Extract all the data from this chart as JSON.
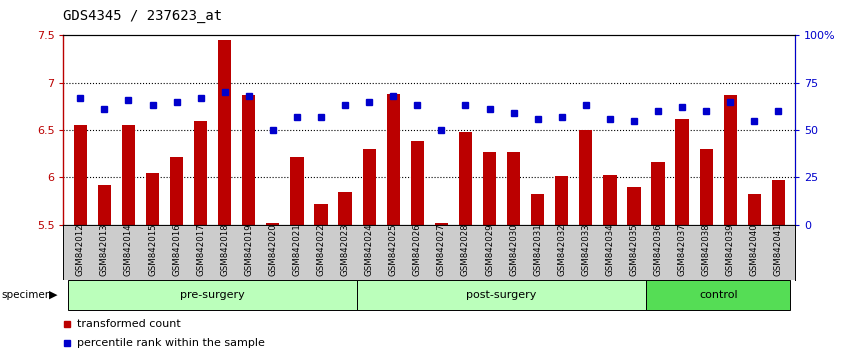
{
  "title": "GDS4345 / 237623_at",
  "samples": [
    "GSM842012",
    "GSM842013",
    "GSM842014",
    "GSM842015",
    "GSM842016",
    "GSM842017",
    "GSM842018",
    "GSM842019",
    "GSM842020",
    "GSM842021",
    "GSM842022",
    "GSM842023",
    "GSM842024",
    "GSM842025",
    "GSM842026",
    "GSM842027",
    "GSM842028",
    "GSM842029",
    "GSM842030",
    "GSM842031",
    "GSM842032",
    "GSM842033",
    "GSM842034",
    "GSM842035",
    "GSM842036",
    "GSM842037",
    "GSM842038",
    "GSM842039",
    "GSM842040",
    "GSM842041"
  ],
  "bar_values": [
    6.55,
    5.92,
    6.55,
    6.05,
    6.22,
    6.6,
    7.45,
    6.87,
    5.52,
    6.22,
    5.72,
    5.85,
    6.3,
    6.88,
    6.38,
    5.52,
    6.48,
    6.27,
    6.27,
    5.83,
    6.02,
    6.5,
    6.03,
    5.9,
    6.16,
    6.62,
    6.3,
    6.87,
    5.82,
    5.97
  ],
  "percentile_values": [
    67,
    61,
    66,
    63,
    65,
    67,
    70,
    68,
    50,
    57,
    57,
    63,
    65,
    68,
    63,
    50,
    63,
    61,
    59,
    56,
    57,
    63,
    56,
    55,
    60,
    62,
    60,
    65,
    55,
    60
  ],
  "groups": [
    {
      "label": "pre-surgery",
      "start": 0,
      "end": 12
    },
    {
      "label": "post-surgery",
      "start": 12,
      "end": 24
    },
    {
      "label": "control",
      "start": 24,
      "end": 30
    }
  ],
  "group_colors": [
    "#BBFFBB",
    "#BBFFBB",
    "#55DD55"
  ],
  "ylim_left": [
    5.5,
    7.5
  ],
  "ylim_right": [
    0,
    100
  ],
  "bar_color": "#BB0000",
  "dot_color": "#0000CC",
  "bg_color": "#FFFFFF",
  "tick_bg": "#CCCCCC",
  "legend_red_label": "transformed count",
  "legend_blue_label": "percentile rank within the sample",
  "specimen_label": "specimen"
}
